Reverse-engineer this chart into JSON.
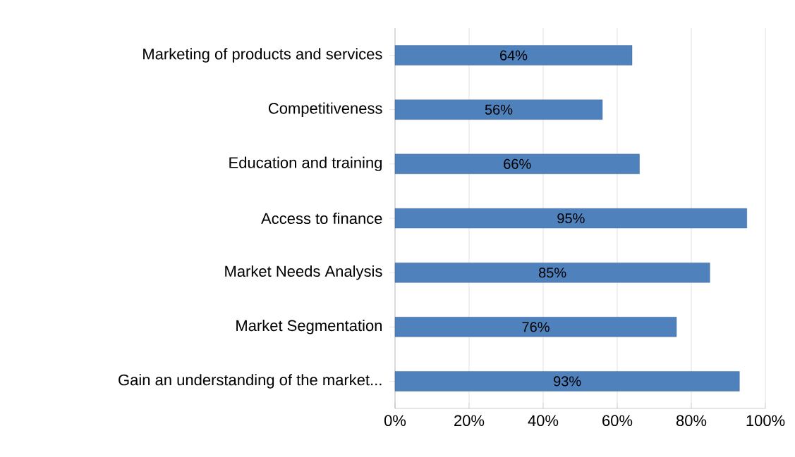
{
  "chart_data": {
    "type": "bar",
    "orientation": "horizontal",
    "categories": [
      "Marketing of products and services",
      "Competitiveness",
      "Education and training",
      "Access to finance",
      "Market Needs Analysis",
      "Market Segmentation",
      "Gain an understanding of the market..."
    ],
    "values": [
      64,
      56,
      66,
      95,
      85,
      76,
      93
    ],
    "value_labels": [
      "64%",
      "56%",
      "66%",
      "95%",
      "85%",
      "76%",
      "93%"
    ],
    "color": "#4f81bd",
    "xlim": [
      0,
      100
    ],
    "xticks": [
      {
        "value": 0,
        "label": "0%"
      },
      {
        "value": 20,
        "label": "20%"
      },
      {
        "value": 40,
        "label": "40%"
      },
      {
        "value": 60,
        "label": "60%"
      },
      {
        "value": 80,
        "label": "80%"
      },
      {
        "value": 100,
        "label": "100%"
      }
    ],
    "grid": "x"
  }
}
